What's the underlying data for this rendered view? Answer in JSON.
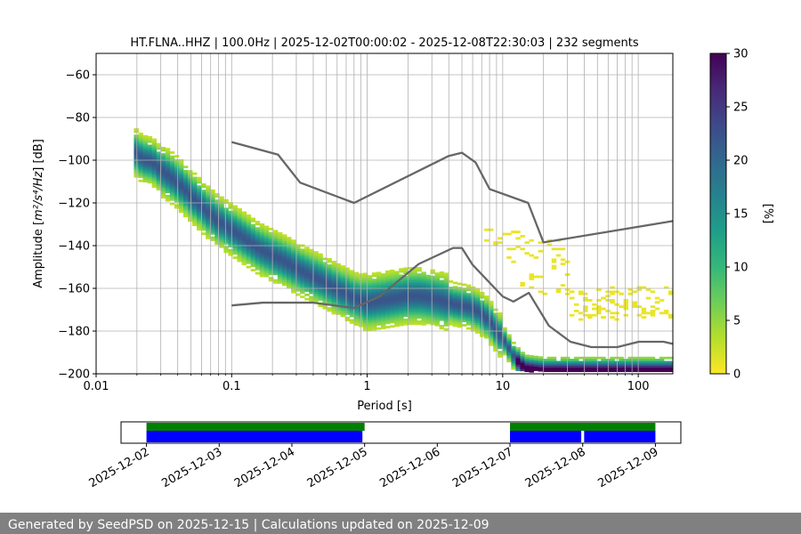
{
  "chart_data": [
    {
      "type": "heatmap",
      "title": "HT.FLNA..HHZ | 100.0Hz | 2025-12-02T00:00:02 - 2025-12-08T22:30:03 | 232 segments",
      "xlabel": "Period [s]",
      "ylabel_prefix": "Amplitude [",
      "ylabel_unit": "m²/s⁴/Hz",
      "ylabel_suffix": "] [dB]",
      "xscale": "log",
      "xlim": [
        0.01,
        180
      ],
      "ylim": [
        -200,
        -50
      ],
      "x_ticks": [
        0.01,
        0.1,
        1,
        10,
        100
      ],
      "x_tick_labels": [
        "0.01",
        "0.1",
        "1",
        "10",
        "100"
      ],
      "y_ticks": [
        -200,
        -180,
        -160,
        -140,
        -120,
        -100,
        -80,
        -60
      ],
      "y_tick_labels": [
        "−200",
        "−180",
        "−160",
        "−140",
        "−120",
        "−100",
        "−80",
        "−60"
      ],
      "colorbar": {
        "label": "[%]",
        "min": 0,
        "max": 30,
        "ticks": [
          0,
          5,
          10,
          15,
          20,
          25,
          30
        ],
        "tick_labels": [
          "0",
          "5",
          "10",
          "15",
          "20",
          "25",
          "30"
        ],
        "colormap": [
          "#fde725",
          "#b5de2b",
          "#6ece58",
          "#35b779",
          "#1f9e89",
          "#26828e",
          "#31688e",
          "#3e4989",
          "#482878",
          "#440154"
        ]
      },
      "psd_mode": [
        [
          0.019,
          -96
        ],
        [
          0.022,
          -100
        ],
        [
          0.026,
          -101
        ],
        [
          0.03,
          -105
        ],
        [
          0.035,
          -108
        ],
        [
          0.04,
          -111
        ],
        [
          0.05,
          -117
        ],
        [
          0.06,
          -122
        ],
        [
          0.07,
          -126
        ],
        [
          0.08,
          -129
        ],
        [
          0.1,
          -133
        ],
        [
          0.13,
          -138
        ],
        [
          0.16,
          -142
        ],
        [
          0.2,
          -145
        ],
        [
          0.25,
          -148
        ],
        [
          0.3,
          -151
        ],
        [
          0.4,
          -155
        ],
        [
          0.5,
          -158
        ],
        [
          0.6,
          -161
        ],
        [
          0.7,
          -163
        ],
        [
          0.8,
          -165
        ],
        [
          1.0,
          -167
        ],
        [
          1.3,
          -166
        ],
        [
          1.6,
          -165
        ],
        [
          2.0,
          -164
        ],
        [
          2.5,
          -164
        ],
        [
          3.0,
          -165
        ],
        [
          3.5,
          -166
        ],
        [
          4.0,
          -167
        ],
        [
          4.5,
          -168
        ],
        [
          5.5,
          -169
        ],
        [
          6.5,
          -171
        ],
        [
          7.5,
          -174
        ],
        [
          8.5,
          -178
        ],
        [
          10,
          -184
        ],
        [
          11,
          -188
        ],
        [
          12,
          -192
        ],
        [
          13.5,
          -196
        ],
        [
          15,
          -198
        ],
        [
          20,
          -199
        ],
        [
          40,
          -199
        ],
        [
          100,
          -199
        ],
        [
          180,
          -199
        ]
      ],
      "nhnm": [
        [
          0.1,
          -91.5
        ],
        [
          0.22,
          -97.4
        ],
        [
          0.32,
          -110.5
        ],
        [
          0.8,
          -120
        ],
        [
          4,
          -98
        ],
        [
          5,
          -96.5
        ],
        [
          6.3,
          -101
        ],
        [
          8,
          -113.5
        ],
        [
          15.4,
          -120
        ],
        [
          20,
          -138.5
        ],
        [
          180,
          -128.5
        ]
      ],
      "nlnm": [
        [
          0.1,
          -168
        ],
        [
          0.17,
          -166.7
        ],
        [
          0.4,
          -166.7
        ],
        [
          0.8,
          -169.2
        ],
        [
          1.24,
          -163.7
        ],
        [
          2.4,
          -148.6
        ],
        [
          4.3,
          -141.1
        ],
        [
          5,
          -141.1
        ],
        [
          6,
          -149
        ],
        [
          10,
          -163.8
        ],
        [
          12,
          -166.2
        ],
        [
          15.6,
          -162.1
        ],
        [
          21.9,
          -177.5
        ],
        [
          31.6,
          -185
        ],
        [
          45,
          -187.5
        ],
        [
          70,
          -187.5
        ],
        [
          101,
          -185
        ],
        [
          154,
          -185
        ],
        [
          180,
          -186
        ]
      ]
    },
    {
      "type": "timeline",
      "x_tick_labels": [
        "2025-12-02",
        "2025-12-03",
        "2025-12-04",
        "2025-12-05",
        "2025-12-06",
        "2025-12-07",
        "2025-12-08",
        "2025-12-09"
      ],
      "xlim_days": [
        -0.35,
        7.35
      ],
      "data_available": [
        [
          0.0,
          3.0
        ],
        [
          5.0,
          7.0
        ]
      ],
      "segments_used": [
        [
          0.0,
          2.97
        ],
        [
          5.0,
          5.98
        ],
        [
          6.02,
          7.0
        ]
      ],
      "colors": {
        "available": "#008000",
        "segments": "#0000ff"
      }
    }
  ],
  "footer": "Generated by SeedPSD on 2025-12-15 | Calculations updated on 2025-12-09"
}
